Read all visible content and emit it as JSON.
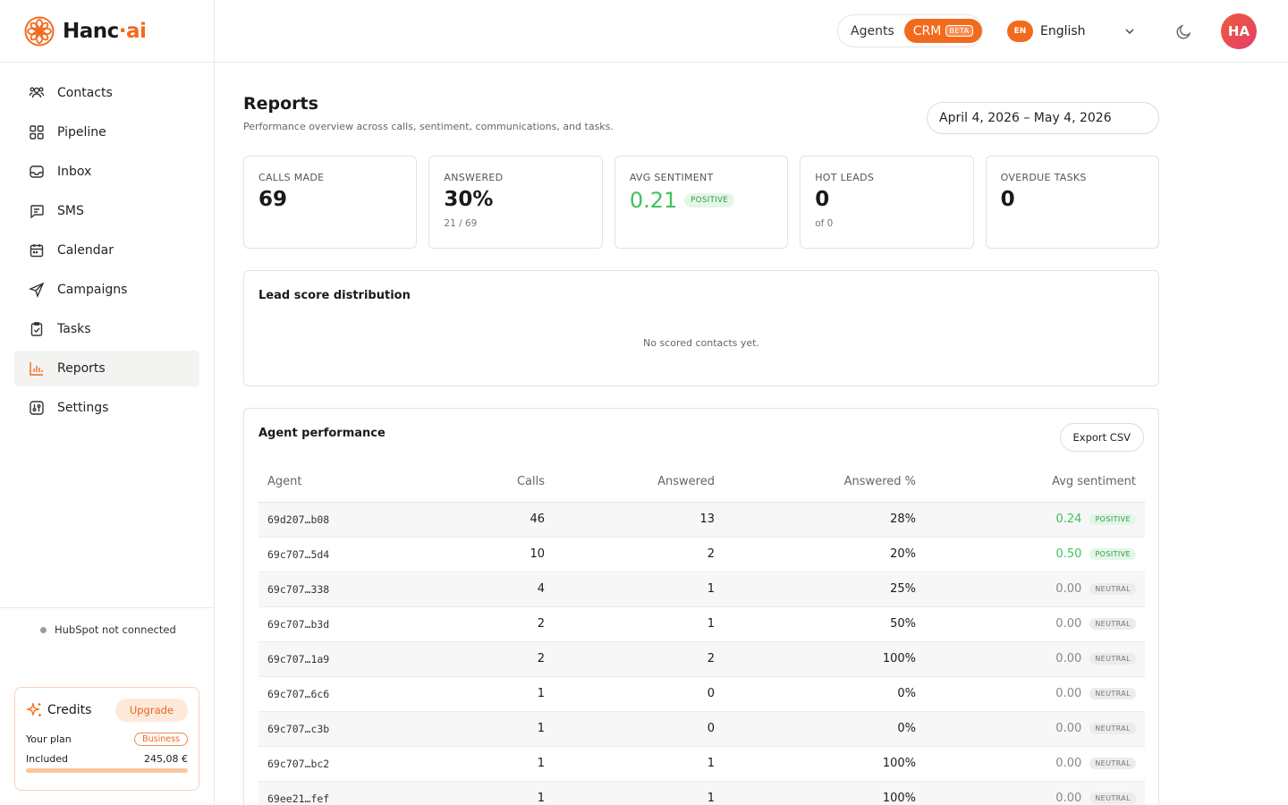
{
  "brand": {
    "name_part1": "Hanc",
    "dot": "·",
    "name_part2": "ai"
  },
  "sidebar": {
    "items": [
      {
        "label": "Contacts",
        "icon": "contacts-icon"
      },
      {
        "label": "Pipeline",
        "icon": "pipeline-icon"
      },
      {
        "label": "Inbox",
        "icon": "inbox-icon"
      },
      {
        "label": "SMS",
        "icon": "sms-icon"
      },
      {
        "label": "Calendar",
        "icon": "calendar-icon"
      },
      {
        "label": "Campaigns",
        "icon": "campaigns-icon"
      },
      {
        "label": "Tasks",
        "icon": "tasks-icon"
      },
      {
        "label": "Reports",
        "icon": "reports-icon"
      },
      {
        "label": "Settings",
        "icon": "settings-icon"
      }
    ],
    "active_item": "Reports",
    "hubspot_status": "HubSpot not connected",
    "credits": {
      "title": "Credits",
      "upgrade_label": "Upgrade",
      "plan_label": "Your plan",
      "plan_value": "Business",
      "included_label": "Included",
      "included_value": "245,08 €",
      "usage_fraction": 1.0
    }
  },
  "topbar": {
    "mode_agents": "Agents",
    "mode_crm": "CRM",
    "beta_label": "BETA",
    "lang_code": "EN",
    "lang_name": "English",
    "avatar_initials": "HA"
  },
  "page": {
    "title": "Reports",
    "subtitle": "Performance overview across calls, sentiment, communications, and tasks.",
    "date_range": "April 4, 2026 – May 4, 2026"
  },
  "stats": {
    "calls_made": {
      "label": "CALLS MADE",
      "value": "69"
    },
    "answered": {
      "label": "ANSWERED",
      "value": "30%",
      "sub": "21 / 69"
    },
    "avg_sentiment": {
      "label": "AVG SENTIMENT",
      "value": "0.21",
      "badge": "POSITIVE"
    },
    "hot_leads": {
      "label": "HOT LEADS",
      "value": "0",
      "sub": "of 0"
    },
    "overdue_tasks": {
      "label": "OVERDUE TASKS",
      "value": "0"
    }
  },
  "lead_score": {
    "title": "Lead score distribution",
    "empty_message": "No scored contacts yet."
  },
  "agent_performance": {
    "title": "Agent performance",
    "export_label": "Export CSV",
    "columns": [
      "Agent",
      "Calls",
      "Answered",
      "Answered %",
      "Avg sentiment"
    ],
    "rows": [
      {
        "agent": "69d207…b08",
        "calls": "46",
        "answered": "13",
        "answered_pct": "28%",
        "sentiment": "0.24",
        "sentiment_label": "POSITIVE",
        "tone": "pos"
      },
      {
        "agent": "69c707…5d4",
        "calls": "10",
        "answered": "2",
        "answered_pct": "20%",
        "sentiment": "0.50",
        "sentiment_label": "POSITIVE",
        "tone": "pos"
      },
      {
        "agent": "69c707…338",
        "calls": "4",
        "answered": "1",
        "answered_pct": "25%",
        "sentiment": "0.00",
        "sentiment_label": "NEUTRAL",
        "tone": "neu"
      },
      {
        "agent": "69c707…b3d",
        "calls": "2",
        "answered": "1",
        "answered_pct": "50%",
        "sentiment": "0.00",
        "sentiment_label": "NEUTRAL",
        "tone": "neu"
      },
      {
        "agent": "69c707…1a9",
        "calls": "2",
        "answered": "2",
        "answered_pct": "100%",
        "sentiment": "0.00",
        "sentiment_label": "NEUTRAL",
        "tone": "neu"
      },
      {
        "agent": "69c707…6c6",
        "calls": "1",
        "answered": "0",
        "answered_pct": "0%",
        "sentiment": "0.00",
        "sentiment_label": "NEUTRAL",
        "tone": "neu"
      },
      {
        "agent": "69c707…c3b",
        "calls": "1",
        "answered": "0",
        "answered_pct": "0%",
        "sentiment": "0.00",
        "sentiment_label": "NEUTRAL",
        "tone": "neu"
      },
      {
        "agent": "69c707…bc2",
        "calls": "1",
        "answered": "1",
        "answered_pct": "100%",
        "sentiment": "0.00",
        "sentiment_label": "NEUTRAL",
        "tone": "neu"
      },
      {
        "agent": "69ee21…fef",
        "calls": "1",
        "answered": "1",
        "answered_pct": "100%",
        "sentiment": "0.00",
        "sentiment_label": "NEUTRAL",
        "tone": "neu"
      }
    ]
  },
  "colors": {
    "accent": "#f26b1d",
    "positive": "#3fc25e",
    "neutral": "#888888"
  }
}
